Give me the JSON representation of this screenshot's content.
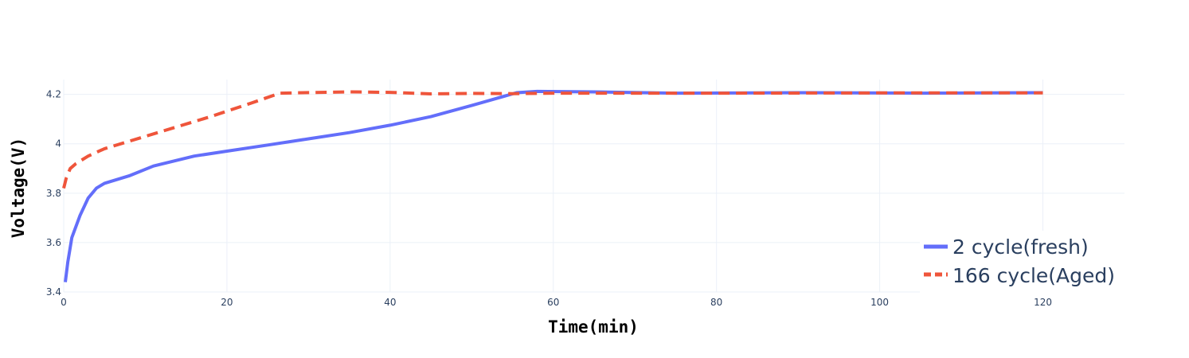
{
  "chart_data": {
    "type": "line",
    "title": "",
    "xlabel": "Time(min)",
    "ylabel": "Voltage(V)",
    "xlim": [
      0,
      130
    ],
    "ylim": [
      3.4,
      4.26
    ],
    "x_ticks": [
      0,
      20,
      40,
      60,
      80,
      100,
      120
    ],
    "x_tick_labels": [
      "0",
      "20",
      "40",
      "60",
      "80",
      "100",
      "120"
    ],
    "y_ticks": [
      3.4,
      3.6,
      3.8,
      4.0,
      4.2
    ],
    "y_tick_labels": [
      "3.4",
      "3.6",
      "3.8",
      "4",
      "4.2"
    ],
    "grid": true,
    "legend_position": "bottom-right",
    "series": [
      {
        "name": "2 cycle(fresh)",
        "color": "#636efa",
        "dash": "solid",
        "x": [
          0.2,
          0.5,
          1,
          2,
          3,
          4,
          5,
          8,
          11,
          16,
          20,
          25,
          30,
          35,
          40,
          45,
          50,
          55.5,
          58,
          65,
          75,
          90,
          105,
          120
        ],
        "y": [
          3.44,
          3.52,
          3.62,
          3.71,
          3.78,
          3.82,
          3.84,
          3.87,
          3.91,
          3.95,
          3.97,
          3.995,
          4.02,
          4.045,
          4.075,
          4.11,
          4.155,
          4.207,
          4.212,
          4.21,
          4.205,
          4.207,
          4.205,
          4.207
        ]
      },
      {
        "name": "166 cycle(Aged)",
        "color": "#ef553b",
        "dash": "dash",
        "x": [
          0,
          0.3,
          0.8,
          1.5,
          3,
          5,
          8,
          12,
          18,
          23,
          26.5,
          35,
          40,
          45,
          50,
          55,
          60,
          70,
          80,
          100,
          120
        ],
        "y": [
          3.82,
          3.86,
          3.9,
          3.92,
          3.95,
          3.98,
          4.01,
          4.05,
          4.11,
          4.165,
          4.205,
          4.21,
          4.208,
          4.202,
          4.204,
          4.203,
          4.205,
          4.205,
          4.205,
          4.206,
          4.206
        ]
      }
    ]
  }
}
